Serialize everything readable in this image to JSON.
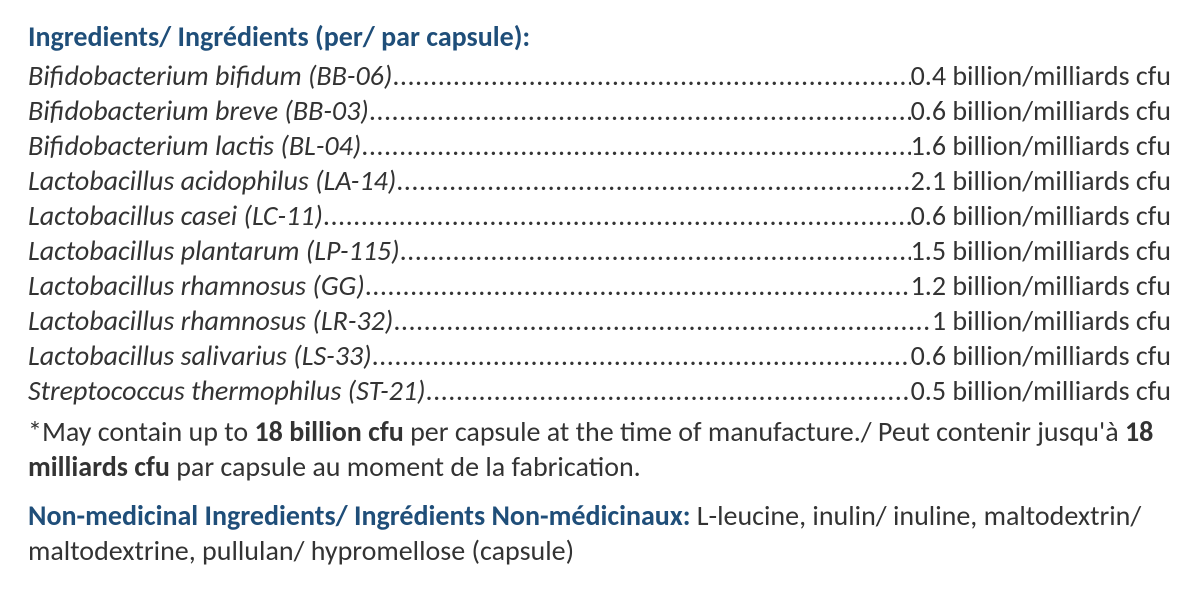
{
  "colors": {
    "heading": "#1f4e79",
    "text": "#333333",
    "background": "#ffffff"
  },
  "typography": {
    "font_family": "Calibri",
    "base_size_pt": 21,
    "heading_weight": 700,
    "body_weight": 400,
    "ingredient_name_style": "italic"
  },
  "header_title": "Ingredients/ Ingrédients (per/ par capsule):",
  "unit_suffix": " billion/milliards cfu",
  "ingredients": [
    {
      "name": "Bifidobacterium bifidum (BB-06)",
      "value": "0.4"
    },
    {
      "name": "Bifidobacterium breve (BB-03)",
      "value": "0.6"
    },
    {
      "name": "Bifidobacterium lactis (BL-04)",
      "value": "1.6"
    },
    {
      "name": "Lactobacillus acidophilus (LA-14)",
      "value": "2.1"
    },
    {
      "name": "Lactobacillus casei (LC-11)",
      "value": "0.6 "
    },
    {
      "name": "Lactobacillus plantarum (LP-115)",
      "value": "1.5"
    },
    {
      "name": "Lactobacillus rhamnosus (GG)",
      "value": "1.2 "
    },
    {
      "name": "Lactobacillus rhamnosus (LR-32)",
      "value": "1"
    },
    {
      "name": "Lactobacillus salivarius (LS-33)",
      "value": "0.6"
    },
    {
      "name": "Streptococcus thermophilus (ST-21)",
      "value": "0.5"
    }
  ],
  "note": {
    "prefix": "*May contain up to ",
    "strong1": "18 billion cfu",
    "mid": " per capsule at the time of manufacture./ Peut contenir jusqu'à ",
    "strong2": "18 milliards cfu",
    "suffix": " par capsule au moment de la fabrication."
  },
  "nonmed": {
    "heading": "Non-medicinal Ingredients/ Ingrédients Non-médicinaux:",
    "body": " L-leucine, inulin/ inuline, maltodextrin/ maltodextrine, pullulan/ hypromellose (capsule)"
  }
}
